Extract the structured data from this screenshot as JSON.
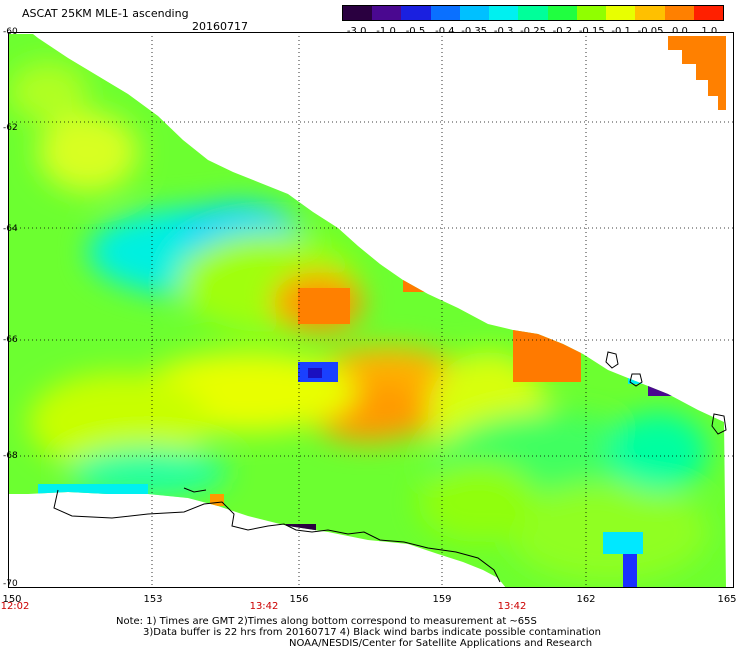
{
  "header": {
    "title": "ASCAT 25KM MLE-1 ascending",
    "date": "20160717"
  },
  "colorbar": {
    "labels": [
      "-3.0",
      "-1.0",
      "-0.5",
      "-0.4",
      "-0.35",
      "-0.3",
      "-0.25",
      "-0.2",
      "-0.15",
      "-0.1",
      "-0.05",
      "0.0",
      "1.0"
    ],
    "colors": [
      "#2a0040",
      "#4a0890",
      "#1a20e0",
      "#0a70ff",
      "#00c0ff",
      "#00f0f0",
      "#00ff9a",
      "#20ff40",
      "#90ff00",
      "#e8ff00",
      "#ffc000",
      "#ff8000",
      "#ff2000"
    ]
  },
  "axes": {
    "lat_labels": [
      "-60",
      "-62",
      "-64",
      "-66",
      "-68",
      "-70"
    ],
    "lon_labels": [
      "150",
      "153",
      "156",
      "159",
      "162",
      "165"
    ]
  },
  "times": [
    "12:02",
    "13:42",
    "13:42"
  ],
  "notes": {
    "line1": "Note: 1) Times are GMT 2)Times along bottom correspond to measurement at ~65S",
    "line2": "3)Data buffer is 22 hrs from 20160717 4) Black wind barbs indicate possible contamination",
    "line3": "NOAA/NESDIS/Center for Satellite Applications and Research"
  }
}
